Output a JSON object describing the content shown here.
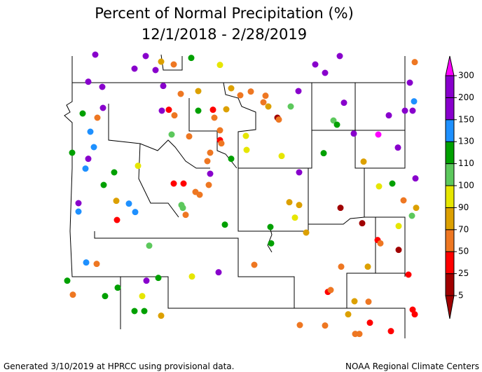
{
  "chart_data": {
    "type": "map",
    "title": [
      "Percent of Normal Precipitation (%)",
      "12/1/2018 - 2/28/2019"
    ],
    "footer_left": "Generated 3/10/2019 at HPRCC using provisional data.",
    "footer_right": "NOAA Regional Climate Centers",
    "lonlim": [
      -112.5,
      -102.6
    ],
    "latlim": [
      40,
      46
    ],
    "colorbar": {
      "levels": [
        5,
        25,
        50,
        70,
        90,
        100,
        110,
        130,
        150,
        200,
        300
      ],
      "colors": [
        "#a00000",
        "#a00000",
        "#ff0000",
        "#ee7722",
        "#dca000",
        "#e6e600",
        "#5cc85c",
        "#00a000",
        "#1e90ff",
        "#8800cc",
        "#8800cc",
        "#ff00ff"
      ]
    },
    "stations": [
      [
        -111.84,
        46.03,
        175
      ],
      [
        -110.4,
        46.0,
        175
      ],
      [
        -109.96,
        45.88,
        80
      ],
      [
        -109.6,
        45.82,
        60
      ],
      [
        -109.1,
        45.96,
        120
      ],
      [
        -108.28,
        45.81,
        95
      ],
      [
        -110.72,
        45.73,
        175
      ],
      [
        -110.12,
        45.7,
        175
      ],
      [
        -105.56,
        45.82,
        175
      ],
      [
        -104.86,
        46.0,
        175
      ],
      [
        -105.28,
        45.64,
        175
      ],
      [
        -102.72,
        45.87,
        60
      ],
      [
        -112.04,
        45.45,
        175
      ],
      [
        -111.64,
        45.34,
        175
      ],
      [
        -109.9,
        45.36,
        175
      ],
      [
        -109.4,
        45.19,
        60
      ],
      [
        -108.9,
        45.25,
        80
      ],
      [
        -107.96,
        45.31,
        80
      ],
      [
        -107.7,
        45.16,
        60
      ],
      [
        -107.4,
        45.24,
        60
      ],
      [
        -106.98,
        45.15,
        60
      ],
      [
        -107.04,
        45.01,
        60
      ],
      [
        -106.04,
        45.25,
        175
      ],
      [
        -104.74,
        45.0,
        175
      ],
      [
        -102.86,
        45.43,
        175
      ],
      [
        -102.74,
        45.03,
        140
      ],
      [
        -103.0,
        44.83,
        175
      ],
      [
        -102.78,
        44.83,
        175
      ],
      [
        -103.46,
        44.73,
        175
      ],
      [
        -111.62,
        44.89,
        175
      ],
      [
        -112.2,
        44.77,
        120
      ],
      [
        -109.94,
        44.83,
        175
      ],
      [
        -109.74,
        44.85,
        40
      ],
      [
        -109.58,
        44.73,
        60
      ],
      [
        -108.9,
        44.83,
        120
      ],
      [
        -108.48,
        44.85,
        40
      ],
      [
        -108.44,
        44.68,
        60
      ],
      [
        -108.1,
        44.86,
        80
      ],
      [
        -106.9,
        44.92,
        80
      ],
      [
        -106.64,
        44.68,
        15
      ],
      [
        -106.6,
        44.64,
        60
      ],
      [
        -106.26,
        44.92,
        105
      ],
      [
        -105.04,
        44.62,
        105
      ],
      [
        -104.94,
        44.53,
        120
      ],
      [
        -111.78,
        44.68,
        60
      ],
      [
        -111.98,
        44.38,
        140
      ],
      [
        -108.28,
        44.41,
        60
      ],
      [
        -107.54,
        44.29,
        95
      ],
      [
        -109.66,
        44.32,
        105
      ],
      [
        -109.16,
        44.28,
        60
      ],
      [
        -108.28,
        44.2,
        40
      ],
      [
        -108.24,
        44.13,
        60
      ],
      [
        -104.46,
        44.34,
        175
      ],
      [
        -103.76,
        44.32,
        320
      ],
      [
        -103.2,
        44.04,
        175
      ],
      [
        -111.88,
        44.05,
        140
      ],
      [
        -112.5,
        43.93,
        120
      ],
      [
        -107.52,
        43.99,
        95
      ],
      [
        -108.56,
        43.93,
        60
      ],
      [
        -108.64,
        43.75,
        60
      ],
      [
        -107.96,
        43.8,
        120
      ],
      [
        -106.52,
        43.86,
        95
      ],
      [
        -105.32,
        43.92,
        120
      ],
      [
        -104.18,
        43.74,
        80
      ],
      [
        -112.04,
        43.8,
        175
      ],
      [
        -112.12,
        43.59,
        140
      ],
      [
        -110.62,
        43.65,
        95
      ],
      [
        -111.3,
        43.51,
        120
      ],
      [
        -108.56,
        43.48,
        175
      ],
      [
        -106.02,
        43.51,
        175
      ],
      [
        -111.6,
        43.24,
        120
      ],
      [
        -109.6,
        43.27,
        40
      ],
      [
        -109.32,
        43.27,
        40
      ],
      [
        -108.6,
        43.24,
        60
      ],
      [
        -108.98,
        43.09,
        60
      ],
      [
        -108.86,
        43.03,
        60
      ],
      [
        -103.74,
        43.21,
        95
      ],
      [
        -103.36,
        43.27,
        120
      ],
      [
        -102.7,
        43.38,
        175
      ],
      [
        -112.32,
        42.85,
        175
      ],
      [
        -112.32,
        42.67,
        140
      ],
      [
        -111.24,
        42.9,
        80
      ],
      [
        -110.88,
        42.84,
        140
      ],
      [
        -110.7,
        42.66,
        140
      ],
      [
        -109.38,
        42.81,
        105
      ],
      [
        -109.34,
        42.75,
        105
      ],
      [
        -109.26,
        42.6,
        60
      ],
      [
        -106.3,
        42.87,
        80
      ],
      [
        -106.02,
        42.81,
        80
      ],
      [
        -104.84,
        42.75,
        15
      ],
      [
        -103.04,
        42.91,
        60
      ],
      [
        -102.68,
        42.75,
        80
      ],
      [
        -102.8,
        42.58,
        105
      ],
      [
        -111.22,
        42.49,
        40
      ],
      [
        -108.14,
        42.39,
        120
      ],
      [
        -106.14,
        42.54,
        95
      ],
      [
        -104.22,
        42.42,
        15
      ],
      [
        -106.84,
        42.34,
        120
      ],
      [
        -105.82,
        42.22,
        80
      ],
      [
        -103.18,
        42.36,
        95
      ],
      [
        -103.78,
        42.06,
        40
      ],
      [
        -103.7,
        41.99,
        60
      ],
      [
        -106.82,
        41.99,
        120
      ],
      [
        -110.3,
        41.94,
        105
      ],
      [
        -103.18,
        41.85,
        15
      ],
      [
        -112.1,
        41.58,
        140
      ],
      [
        -111.8,
        41.55,
        60
      ],
      [
        -107.3,
        41.53,
        60
      ],
      [
        -104.82,
        41.49,
        60
      ],
      [
        -104.06,
        41.49,
        80
      ],
      [
        -108.32,
        41.37,
        175
      ],
      [
        -109.08,
        41.28,
        95
      ],
      [
        -110.04,
        41.25,
        120
      ],
      [
        -110.38,
        41.19,
        175
      ],
      [
        -102.9,
        41.32,
        40
      ],
      [
        -112.64,
        41.19,
        120
      ],
      [
        -112.48,
        40.89,
        60
      ],
      [
        -111.56,
        40.86,
        120
      ],
      [
        -111.2,
        41.04,
        120
      ],
      [
        -105.2,
        40.95,
        40
      ],
      [
        -105.12,
        40.99,
        60
      ],
      [
        -110.5,
        40.86,
        95
      ],
      [
        -104.44,
        40.75,
        80
      ],
      [
        -104.04,
        40.74,
        60
      ],
      [
        -102.78,
        40.57,
        40
      ],
      [
        -102.72,
        40.47,
        40
      ],
      [
        -110.72,
        40.54,
        120
      ],
      [
        -110.44,
        40.54,
        120
      ],
      [
        -109.96,
        40.44,
        80
      ],
      [
        -104.62,
        40.47,
        80
      ],
      [
        -106.0,
        40.24,
        60
      ],
      [
        -105.28,
        40.23,
        60
      ],
      [
        -104.0,
        40.29,
        40
      ],
      [
        -104.42,
        40.05,
        60
      ],
      [
        -104.3,
        40.05,
        60
      ],
      [
        -103.4,
        40.11,
        40
      ]
    ]
  }
}
